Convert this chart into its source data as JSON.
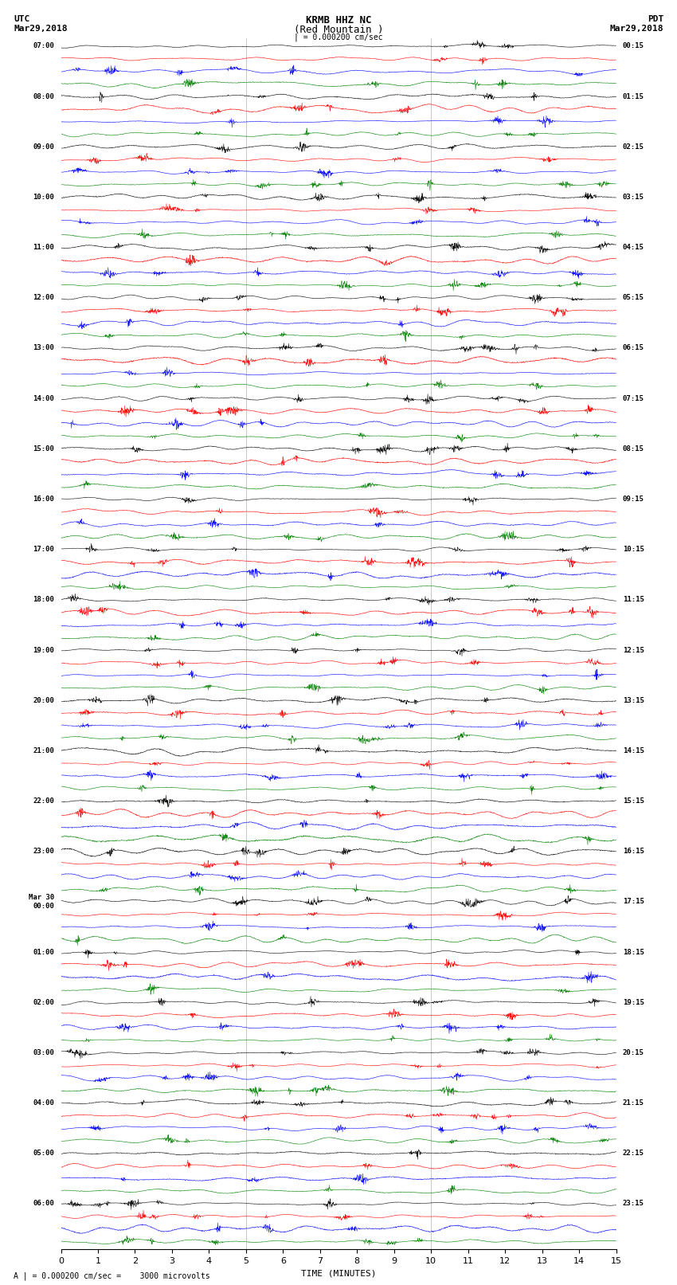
{
  "title_line1": "KRMB HHZ NC",
  "title_line2": "(Red Mountain )",
  "scale_label": "| = 0.000200 cm/sec",
  "left_label": "UTC",
  "left_date": "Mar29,2018",
  "right_label": "PDT",
  "right_date": "Mar29,2018",
  "xlabel": "TIME (MINUTES)",
  "bottom_note": "A | = 0.000200 cm/sec =    3000 microvolts",
  "xmin": 0,
  "xmax": 15,
  "xticks": [
    0,
    1,
    2,
    3,
    4,
    5,
    6,
    7,
    8,
    9,
    10,
    11,
    12,
    13,
    14,
    15
  ],
  "colors": [
    "black",
    "red",
    "blue",
    "green"
  ],
  "background": "white",
  "n_groups": 24,
  "traces_per_group": 4,
  "left_times_utc": [
    "07:00",
    "08:00",
    "09:00",
    "10:00",
    "11:00",
    "12:00",
    "13:00",
    "14:00",
    "15:00",
    "16:00",
    "17:00",
    "18:00",
    "19:00",
    "20:00",
    "21:00",
    "22:00",
    "23:00",
    "Mar 30\n00:00",
    "01:00",
    "02:00",
    "03:00",
    "04:00",
    "05:00",
    "06:00"
  ],
  "right_times_pdt": [
    "00:15",
    "01:15",
    "02:15",
    "03:15",
    "04:15",
    "05:15",
    "06:15",
    "07:15",
    "08:15",
    "09:15",
    "10:15",
    "11:15",
    "12:15",
    "13:15",
    "14:15",
    "15:15",
    "16:15",
    "17:15",
    "18:15",
    "19:15",
    "20:15",
    "21:15",
    "22:15",
    "23:15"
  ],
  "high_amp_groups": [
    14,
    15,
    16
  ],
  "med_amp_groups": [
    13,
    17
  ],
  "base_amplitude": 0.38,
  "high_amplitude": 1.5,
  "med_amplitude": 0.75,
  "n_points": 2000
}
